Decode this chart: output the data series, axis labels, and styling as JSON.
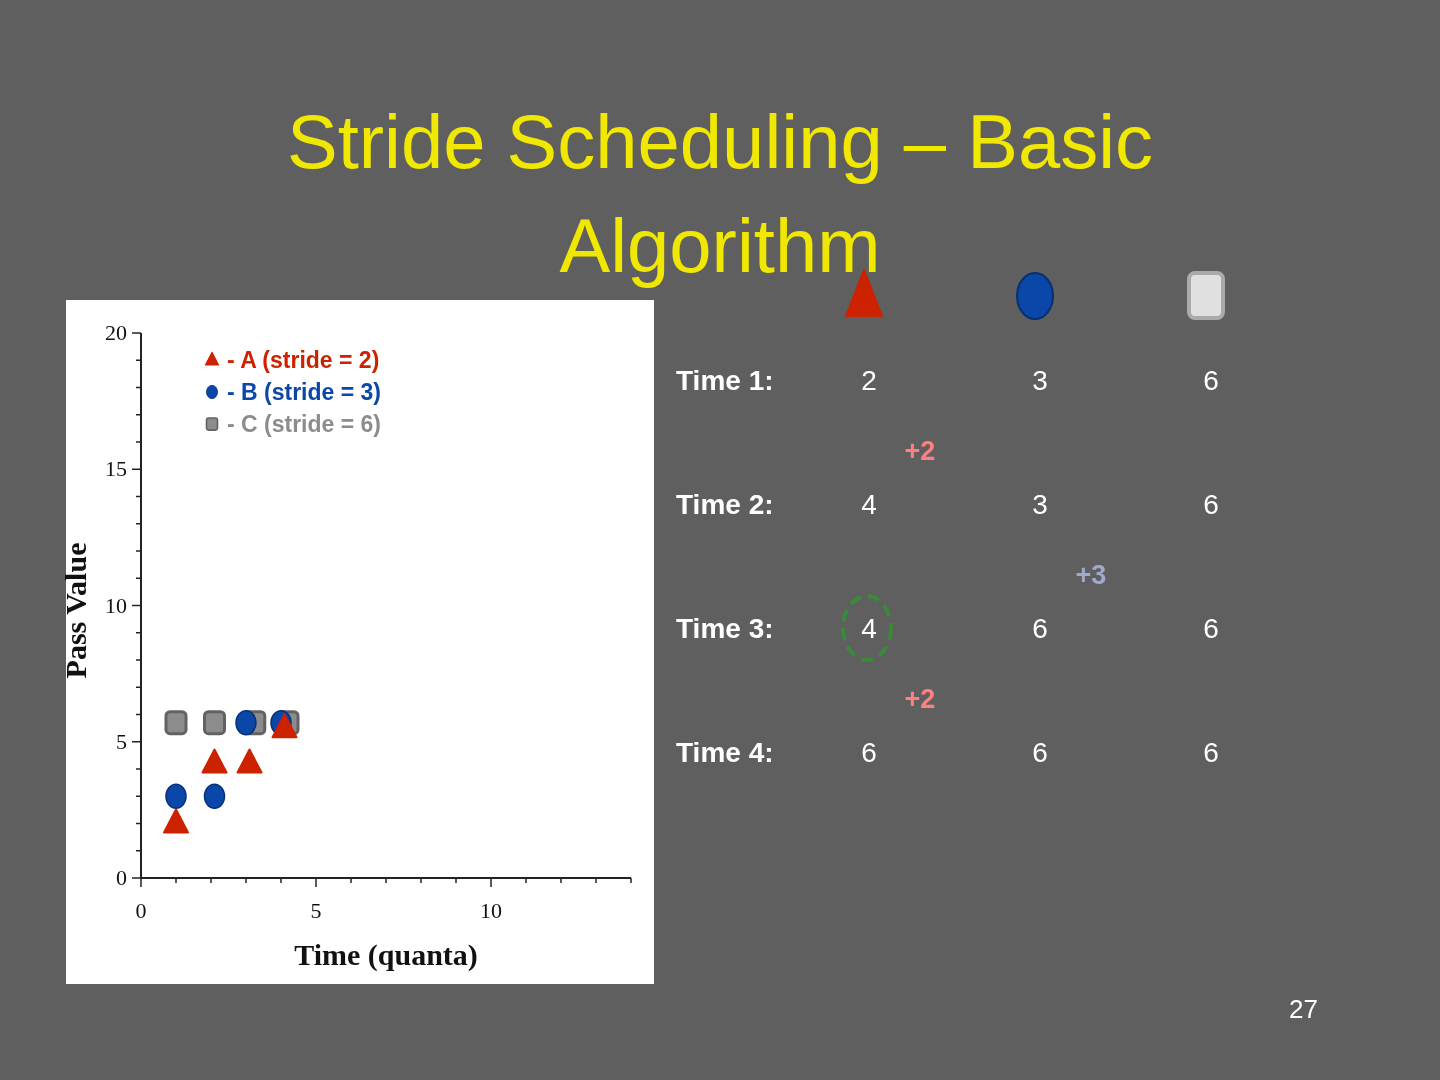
{
  "chart_data": [
    {
      "type": "scatter",
      "title": "Stride Scheduling – Basic Algorithm",
      "xlabel": "Time (quanta)",
      "ylabel": "Pass Value",
      "xlim": [
        0,
        14
      ],
      "ylim": [
        0,
        20
      ],
      "xticks": [
        0,
        {
          "value": 1,
          "label": null
        },
        {
          "value": 2,
          "label": null
        },
        {
          "value": 3,
          "label": null
        },
        {
          "value": 4,
          "label": null
        },
        5,
        {
          "value": 6,
          "label": null
        },
        {
          "value": 7,
          "label": null
        },
        {
          "value": 8,
          "label": null
        },
        {
          "value": 9,
          "label": null
        },
        10,
        {
          "value": 11,
          "label": null
        },
        {
          "value": 12,
          "label": null
        },
        {
          "value": 13,
          "label": null
        },
        {
          "value": 14,
          "label": null
        }
      ],
      "yticks": [
        0,
        {
          "value": 1,
          "label": null
        },
        {
          "value": 2,
          "label": null
        },
        {
          "value": 3,
          "label": null
        },
        {
          "value": 4,
          "label": null
        },
        5,
        {
          "value": 6,
          "label": null
        },
        {
          "value": 7,
          "label": null
        },
        {
          "value": 8,
          "label": null
        },
        {
          "value": 9,
          "label": null
        },
        10,
        {
          "value": 11,
          "label": null
        },
        {
          "value": 12,
          "label": null
        },
        {
          "value": 13,
          "label": null
        },
        {
          "value": 14,
          "label": null
        },
        15,
        {
          "value": 16,
          "label": null
        },
        {
          "value": 17,
          "label": null
        },
        {
          "value": 18,
          "label": null
        },
        {
          "value": 19,
          "label": null
        },
        20
      ],
      "legend": "top left",
      "series": [
        {
          "name": "- A (stride = 2)",
          "color": "#cc2200",
          "marker": "triangle",
          "x": [
            1,
            2.1,
            3.1,
            4.1
          ],
          "values": [
            2,
            4.2,
            4.2,
            5.5
          ]
        },
        {
          "name": "- B (stride = 3)",
          "color": "#0a47a8",
          "marker": "circle",
          "x": [
            1,
            2.1,
            3,
            4
          ],
          "values": [
            3,
            3,
            5.7,
            5.7
          ]
        },
        {
          "name": "- C (stride = 6)",
          "color": "#8c8c8c",
          "marker": "square",
          "x": [
            1,
            2.1,
            3.25,
            4.2
          ],
          "values": [
            5.7,
            5.7,
            5.7,
            5.7
          ]
        }
      ]
    },
    {
      "type": "other",
      "y_categories": [
        "Time 1:",
        "Time 2:",
        "Time 3:",
        "Time 4:"
      ],
      "cells": [
        [
          "2",
          "3",
          "6"
        ],
        [
          "4",
          "3",
          "6"
        ],
        [
          "4",
          "6",
          "6"
        ],
        [
          "6",
          "6",
          "6"
        ]
      ],
      "colors": [
        "#ff8080",
        "#a0a8cc"
      ],
      "annotations": [
        "+2",
        "+3",
        "+2",
        "27"
      ]
    }
  ]
}
